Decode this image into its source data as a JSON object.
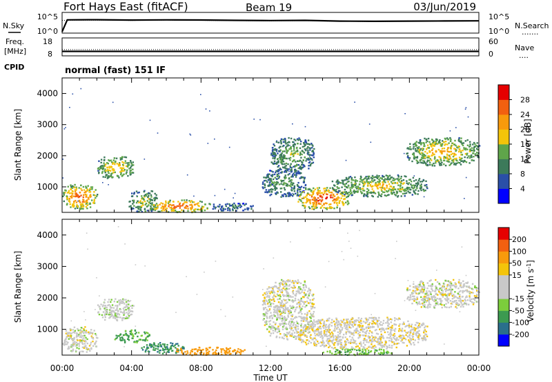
{
  "header": {
    "station": "Fort Hays East (fitACF)",
    "beam": "Beam 19",
    "date": "03/Jun/2019"
  },
  "noise_panel": {
    "left_label": "N.Sky",
    "left_ticks": [
      "10^5",
      "10^0"
    ],
    "right_ticks": [
      "10^5",
      "10^0"
    ],
    "right_label": "N.Search",
    "right_line": "......."
  },
  "freq_panel": {
    "left_label_1": "Freq.",
    "left_label_2": "[MHz]",
    "left_ticks": [
      "18",
      "8"
    ],
    "right_ticks": [
      "60",
      "0"
    ],
    "right_label": "Nave",
    "right_line": "....",
    "cpid_label": "CPID",
    "cpid_text": "normal (fast) 151 IF"
  },
  "colors": {
    "power_scale": [
      "#0000ff",
      "#2a4fa8",
      "#3c7a5a",
      "#5fa54a",
      "#f4c40a",
      "#f89a0c",
      "#f26010",
      "#e60000"
    ],
    "velocity_scale": [
      "#e60000",
      "#f26010",
      "#f89a0c",
      "#f4c40a",
      "#c8c8c8",
      "#c8c8c8",
      "#7ccd3c",
      "#3c9a50",
      "#2a6f8c",
      "#0000ff"
    ]
  },
  "chart_data": [
    {
      "type": "line",
      "panel": "noise",
      "x_unit": "hours UT",
      "series": [
        {
          "name": "N.Sky",
          "x": [
            0,
            0.3,
            2,
            4,
            6,
            8,
            10,
            12,
            14,
            16,
            18,
            20,
            22,
            24
          ],
          "values": [
            1,
            2000,
            2200,
            1800,
            2000,
            1900,
            1500,
            1300,
            1500,
            900,
            800,
            900,
            1000,
            1100
          ]
        },
        {
          "name": "N.Search",
          "x": [
            0,
            2,
            4,
            6,
            8,
            10,
            12,
            14,
            16,
            18,
            20,
            22,
            24
          ],
          "values": [
            1500,
            1700,
            1400,
            1600,
            1500,
            1200,
            1100,
            1200,
            800,
            700,
            800,
            900,
            1000
          ]
        }
      ],
      "ylim": [
        "10^0",
        "10^5"
      ]
    },
    {
      "type": "line",
      "panel": "frequency",
      "series": [
        {
          "name": "Freq.",
          "x": [
            0,
            24
          ],
          "values": [
            10.5,
            10.5
          ]
        },
        {
          "name": "Nave",
          "x": [
            0,
            24
          ],
          "values": [
            21,
            21
          ]
        }
      ],
      "ylim_left": [
        8,
        18
      ],
      "ylim_right": [
        0,
        60
      ]
    },
    {
      "type": "heatmap",
      "panel": "power",
      "ylabel": "Slant Range [km]",
      "xlabel": "Time UT",
      "x_ticks": [
        "00:00",
        "04:00",
        "08:00",
        "12:00",
        "16:00",
        "20:00",
        "00:00"
      ],
      "y_ticks": [
        "1000",
        "2000",
        "3000",
        "4000"
      ],
      "ylim": [
        180,
        4500
      ],
      "xlim": [
        0,
        24
      ],
      "colorbar_label": "Power [dB]",
      "colorbar_ticks": [
        "4",
        "8",
        "12",
        "16",
        "20",
        "24",
        "28"
      ],
      "clim": [
        0,
        32
      ],
      "regions": [
        {
          "t0": 0.0,
          "t1": 2.0,
          "r0": 300,
          "r1": 1100,
          "peak": 28
        },
        {
          "t0": 2.0,
          "t1": 4.1,
          "r0": 1300,
          "r1": 2000,
          "peak": 22
        },
        {
          "t0": 3.8,
          "t1": 5.5,
          "r0": 200,
          "r1": 900,
          "peak": 18
        },
        {
          "t0": 5.0,
          "t1": 8.5,
          "r0": 200,
          "r1": 600,
          "peak": 28
        },
        {
          "t0": 8.5,
          "t1": 11.0,
          "r0": 250,
          "r1": 500,
          "peak": 12
        },
        {
          "t0": 11.5,
          "t1": 14.0,
          "r0": 700,
          "r1": 1600,
          "peak": 14
        },
        {
          "t0": 12.0,
          "t1": 14.5,
          "r0": 1500,
          "r1": 2600,
          "peak": 16
        },
        {
          "t0": 13.5,
          "t1": 16.5,
          "r0": 300,
          "r1": 1000,
          "peak": 30
        },
        {
          "t0": 15.5,
          "t1": 21.0,
          "r0": 700,
          "r1": 1400,
          "peak": 20
        },
        {
          "t0": 19.8,
          "t1": 24.0,
          "r0": 1700,
          "r1": 2600,
          "peak": 22
        }
      ]
    },
    {
      "type": "heatmap",
      "panel": "velocity",
      "ylabel": "Slant Range [km]",
      "xlabel": "Time UT",
      "x_ticks": [
        "00:00",
        "04:00",
        "08:00",
        "12:00",
        "16:00",
        "20:00",
        "00:00"
      ],
      "y_ticks": [
        "1000",
        "2000",
        "3000",
        "4000"
      ],
      "ylim": [
        180,
        4500
      ],
      "xlim": [
        0,
        24
      ],
      "colorbar_label": "Velocity [m s^-1]",
      "colorbar_ticks": [
        "-200",
        "-100",
        "-50",
        "-15",
        "15",
        "50",
        "100",
        "200"
      ],
      "clim": [
        -250,
        250
      ],
      "regions": [
        {
          "t0": 0.0,
          "t1": 2.0,
          "r0": 300,
          "r1": 1100,
          "v": 0
        },
        {
          "t0": 2.0,
          "t1": 4.1,
          "r0": 1300,
          "r1": 2000,
          "v": 5
        },
        {
          "t0": 3.0,
          "t1": 5.0,
          "r0": 600,
          "r1": 1000,
          "v": 60
        },
        {
          "t0": 4.5,
          "t1": 7.0,
          "r0": 250,
          "r1": 600,
          "v": 90
        },
        {
          "t0": 6.5,
          "t1": 10.5,
          "r0": 200,
          "r1": 450,
          "v": -70
        },
        {
          "t0": 11.5,
          "t1": 14.5,
          "r0": 700,
          "r1": 2600,
          "v": 0
        },
        {
          "t0": 13.5,
          "t1": 21.0,
          "r0": 400,
          "r1": 1400,
          "v": -5
        },
        {
          "t0": 15.0,
          "t1": 19.0,
          "r0": 200,
          "r1": 400,
          "v": 40
        },
        {
          "t0": 19.8,
          "t1": 24.0,
          "r0": 1700,
          "r1": 2600,
          "v": 0
        }
      ]
    }
  ]
}
